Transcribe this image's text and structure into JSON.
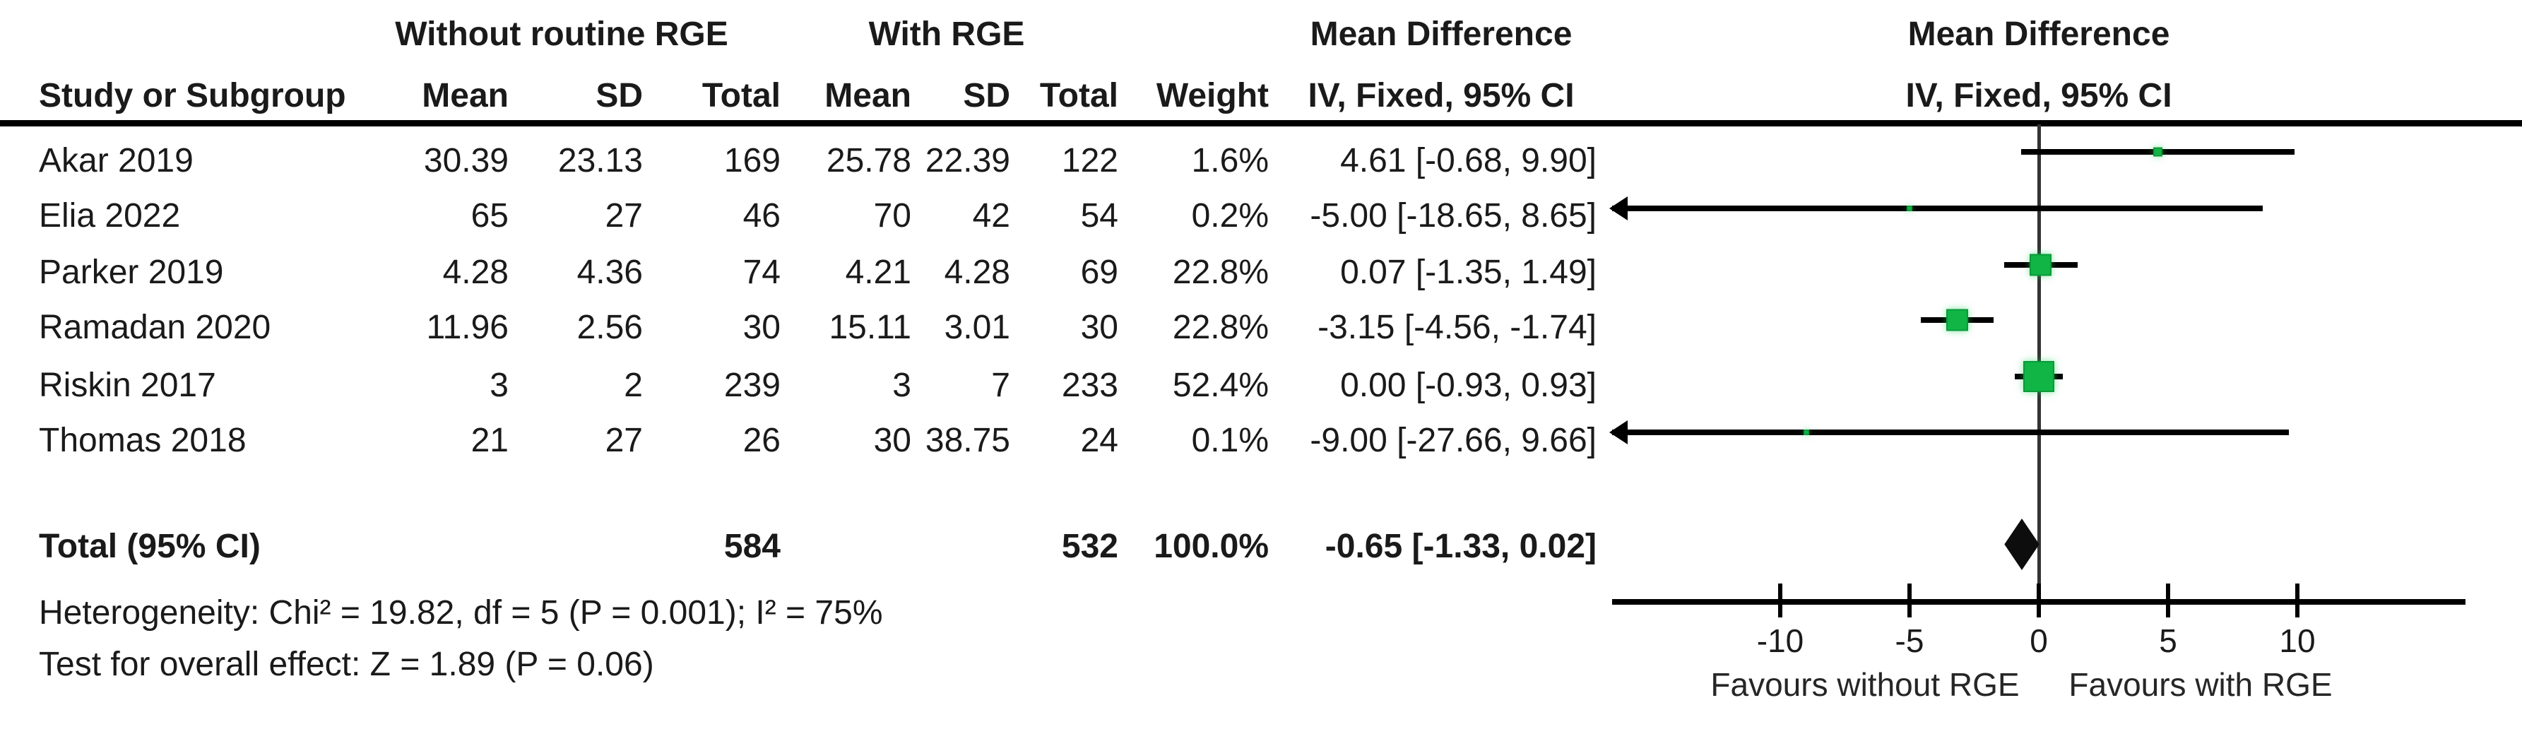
{
  "header": {
    "study_col": "Study or Subgroup",
    "group1": "Without routine RGE",
    "group2": "With RGE",
    "mean_col": "Mean",
    "sd_col": "SD",
    "total_col": "Total",
    "weight_col": "Weight",
    "effect_col_title": "Mean Difference",
    "effect_col_subtitle": "IV, Fixed, 95% CI",
    "plot_col_title": "Mean Difference",
    "plot_col_subtitle": "IV, Fixed, 95% CI"
  },
  "rows": [
    {
      "study": "Akar 2019",
      "g1_mean": "30.39",
      "g1_sd": "23.13",
      "g1_total": "169",
      "g2_mean": "25.78",
      "g2_sd": "22.39",
      "g2_total": "122",
      "weight": "1.6%",
      "effect": "4.61 [-0.68, 9.90]"
    },
    {
      "study": "Elia 2022",
      "g1_mean": "65",
      "g1_sd": "27",
      "g1_total": "46",
      "g2_mean": "70",
      "g2_sd": "42",
      "g2_total": "54",
      "weight": "0.2%",
      "effect": "-5.00 [-18.65, 8.65]"
    },
    {
      "study": "Parker 2019",
      "g1_mean": "4.28",
      "g1_sd": "4.36",
      "g1_total": "74",
      "g2_mean": "4.21",
      "g2_sd": "4.28",
      "g2_total": "69",
      "weight": "22.8%",
      "effect": "0.07 [-1.35, 1.49]"
    },
    {
      "study": "Ramadan 2020",
      "g1_mean": "11.96",
      "g1_sd": "2.56",
      "g1_total": "30",
      "g2_mean": "15.11",
      "g2_sd": "3.01",
      "g2_total": "30",
      "weight": "22.8%",
      "effect": "-3.15 [-4.56, -1.74]"
    },
    {
      "study": "Riskin 2017",
      "g1_mean": "3",
      "g1_sd": "2",
      "g1_total": "239",
      "g2_mean": "3",
      "g2_sd": "7",
      "g2_total": "233",
      "weight": "52.4%",
      "effect": "0.00 [-0.93, 0.93]"
    },
    {
      "study": "Thomas 2018",
      "g1_mean": "21",
      "g1_sd": "27",
      "g1_total": "26",
      "g2_mean": "30",
      "g2_sd": "38.75",
      "g2_total": "24",
      "weight": "0.1%",
      "effect": "-9.00 [-27.66, 9.66]"
    }
  ],
  "total_row": {
    "label": "Total (95% CI)",
    "g1_total": "584",
    "g2_total": "532",
    "weight": "100.0%",
    "effect": "-0.65 [-1.33, 0.02]"
  },
  "footnotes": {
    "heterogeneity": "Heterogeneity: Chi² = 19.82, df = 5 (P = 0.001); I² = 75%",
    "overall_effect": "Test for overall effect: Z = 1.89 (P = 0.06)"
  },
  "colors": {
    "square_green": "#10b546",
    "square_green_border": "#0a9a38",
    "ci_line_black": "#000000",
    "diamond_black": "#0d0d0d"
  },
  "chart_data": {
    "type": "scatter",
    "subtype": "forest-plot",
    "effect_measure": "Mean Difference, IV, Fixed, 95% CI",
    "xlim": [
      -16.5,
      16.5
    ],
    "xticks": [
      -10,
      -5,
      0,
      5,
      10
    ],
    "axis_label_left": "Favours without RGE",
    "axis_label_right": "Favours with RGE",
    "points": [
      {
        "study": "Akar 2019",
        "md": 4.61,
        "ci_low": -0.68,
        "ci_high": 9.9,
        "weight_pct": 1.6
      },
      {
        "study": "Elia 2022",
        "md": -5.0,
        "ci_low": -18.65,
        "ci_high": 8.65,
        "weight_pct": 0.2
      },
      {
        "study": "Parker 2019",
        "md": 0.07,
        "ci_low": -1.35,
        "ci_high": 1.49,
        "weight_pct": 22.8
      },
      {
        "study": "Ramadan 2020",
        "md": -3.15,
        "ci_low": -4.56,
        "ci_high": -1.74,
        "weight_pct": 22.8
      },
      {
        "study": "Riskin 2017",
        "md": 0.0,
        "ci_low": -0.93,
        "ci_high": 0.93,
        "weight_pct": 52.4
      },
      {
        "study": "Thomas 2018",
        "md": -9.0,
        "ci_low": -27.66,
        "ci_high": 9.66,
        "weight_pct": 0.1
      }
    ],
    "total": {
      "md": -0.65,
      "ci_low": -1.33,
      "ci_high": 0.02,
      "weight_pct": 100.0
    }
  }
}
